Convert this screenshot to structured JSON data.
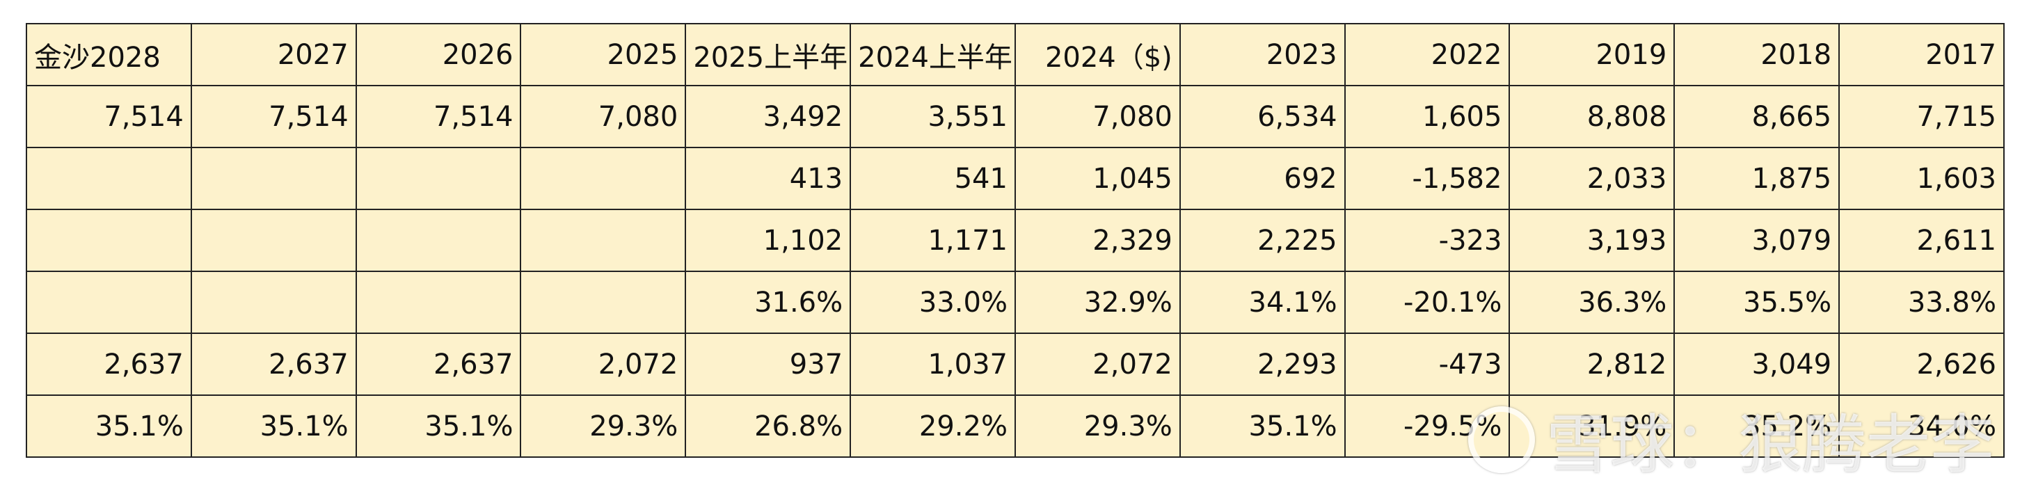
{
  "table": {
    "header": [
      "金沙2028",
      "2027",
      "2026",
      "2025",
      "2025上半年",
      "2024上半年",
      "2024（$)",
      "2023",
      "2022",
      "2019",
      "2018",
      "2017"
    ],
    "rows": [
      [
        "7,514",
        "7,514",
        "7,514",
        "7,080",
        "3,492",
        "3,551",
        "7,080",
        "6,534",
        "1,605",
        "8,808",
        "8,665",
        "7,715"
      ],
      [
        null,
        null,
        null,
        null,
        "413",
        "541",
        "1,045",
        "692",
        "-1,582",
        "2,033",
        "1,875",
        "1,603"
      ],
      [
        null,
        null,
        null,
        null,
        "1,102",
        "1,171",
        "2,329",
        "2,225",
        "-323",
        "3,193",
        "3,079",
        "2,611"
      ],
      [
        null,
        null,
        null,
        null,
        "31.6%",
        "33.0%",
        "32.9%",
        "34.1%",
        "-20.1%",
        "36.3%",
        "35.5%",
        "33.8%"
      ],
      [
        "2,637",
        "2,637",
        "2,637",
        "2,072",
        "937",
        "1,037",
        "2,072",
        "2,293",
        "-473",
        "2,812",
        "3,049",
        "2,626"
      ],
      [
        "35.1%",
        "35.1%",
        "35.1%",
        "29.3%",
        "26.8%",
        "29.2%",
        "29.3%",
        "35.1%",
        "-29.5%",
        "31.9%",
        "35.2%",
        "34.0%"
      ]
    ]
  },
  "watermark": "雪球：狼腾老李"
}
